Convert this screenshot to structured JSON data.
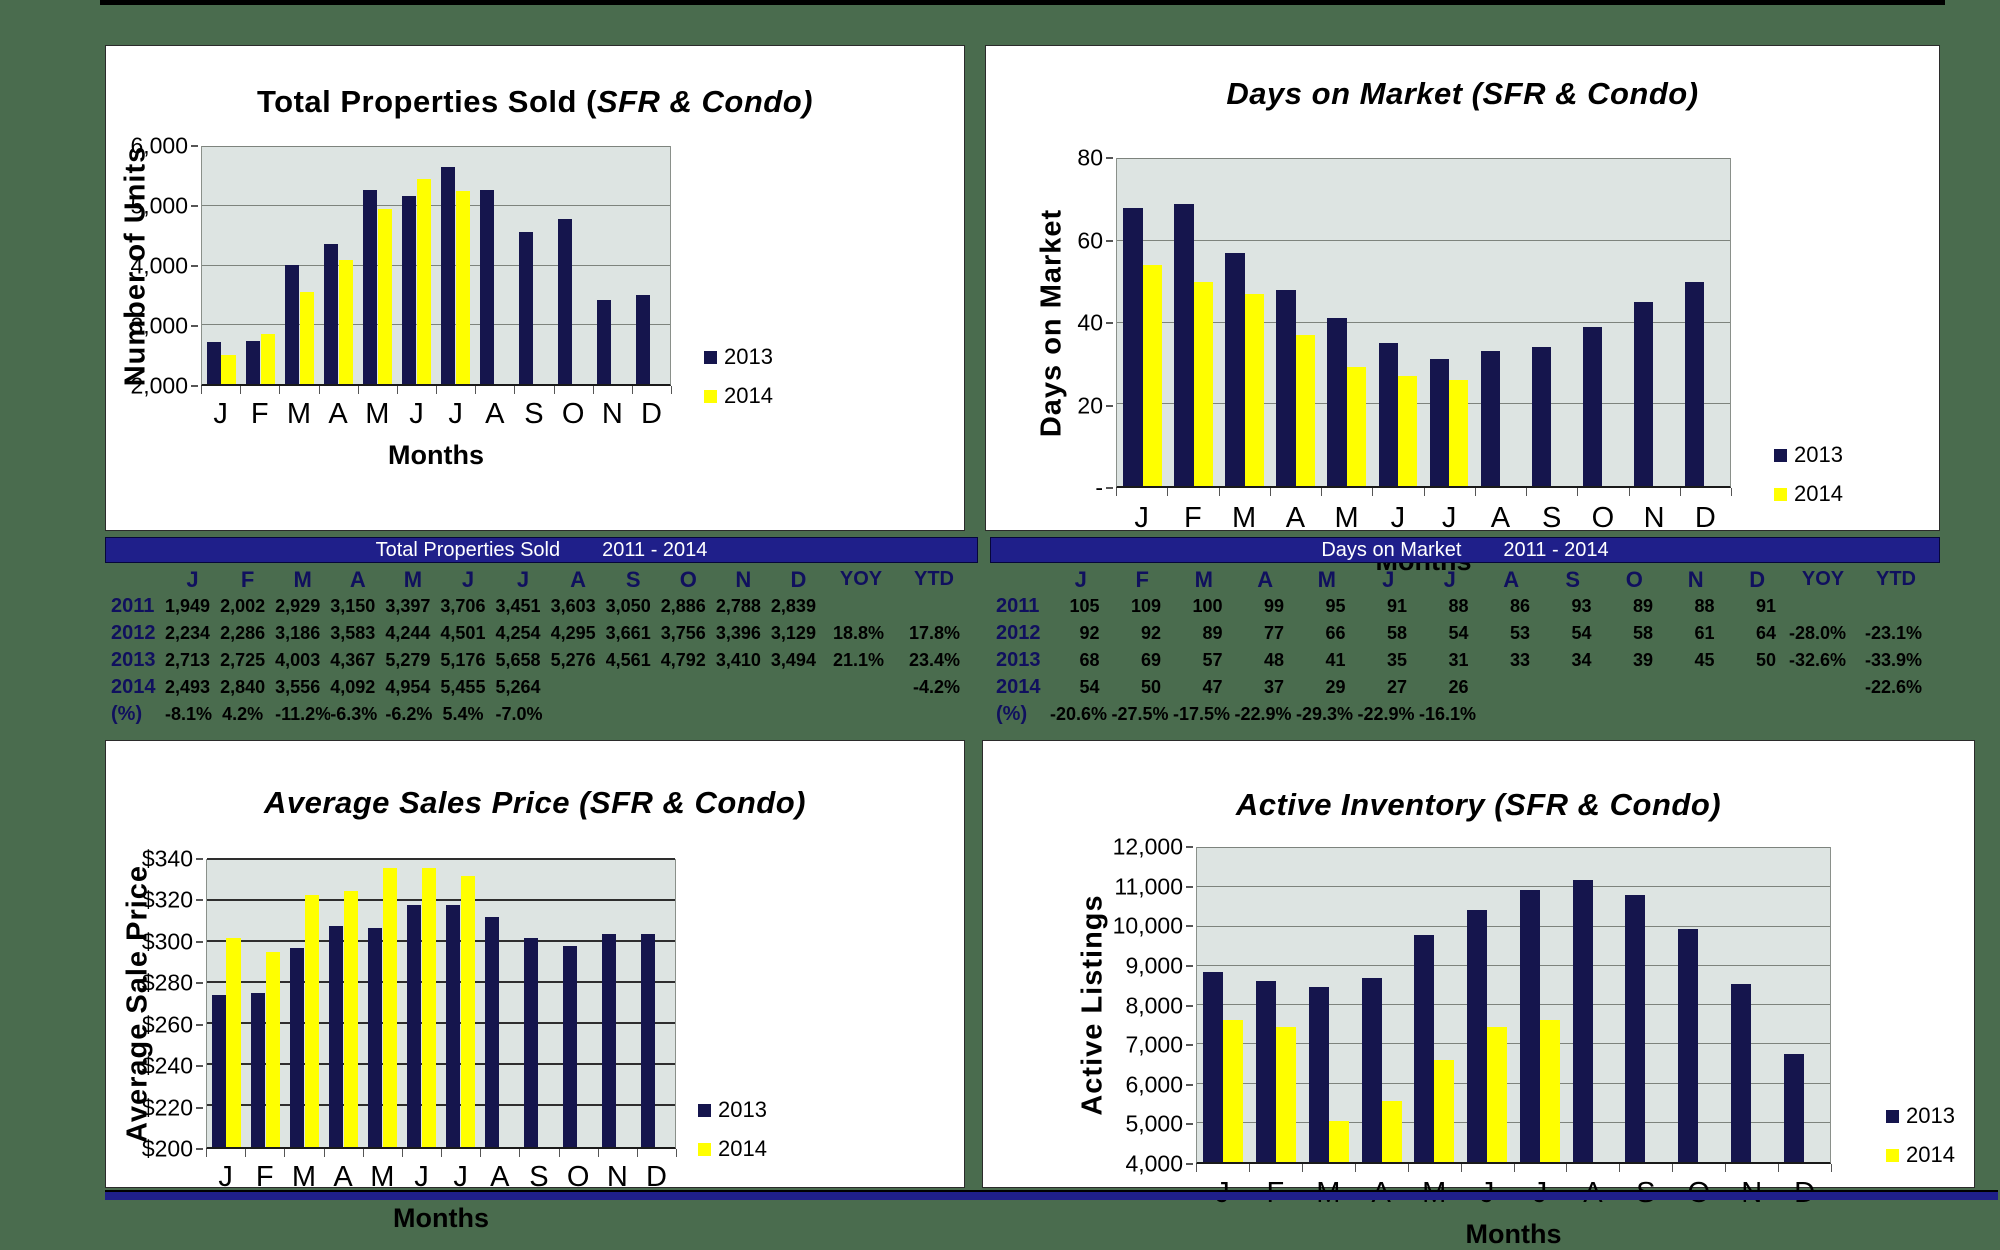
{
  "colors": {
    "page_bg": "#4a6c4e",
    "panel_bg": "#ffffff",
    "plot_bg": "#dde4e2",
    "gridline": "#7d837d",
    "bar_2013_navy": "#15154d",
    "bar_2014_yellow": "#ffff00",
    "table_header_bg": "#1f1f8a",
    "table_header_text": "#ffffff",
    "navy_text": "#10105e"
  },
  "chart_data": [
    {
      "type": "bar",
      "title": "Total Properties Sold (SFR & Condo)",
      "title_prefix": "Total Properties Sold (",
      "title_italic": "SFR & Condo)",
      "xlabel": "Months",
      "ylabel": "Number of Units",
      "categories": [
        "J",
        "F",
        "M",
        "A",
        "M",
        "J",
        "J",
        "A",
        "S",
        "O",
        "N",
        "D"
      ],
      "ylim": [
        2000,
        6000
      ],
      "yticks": [
        2000,
        3000,
        4000,
        5000,
        6000
      ],
      "ytick_labels": [
        "2,000",
        "3,000",
        "4,000",
        "5,000",
        "6,000"
      ],
      "grid": true,
      "legend_position": "right-bottom",
      "series": [
        {
          "name": "2013",
          "color": "#15154d",
          "values": [
            2713,
            2725,
            4003,
            4367,
            5279,
            5176,
            5658,
            5276,
            4561,
            4792,
            3410,
            3494
          ]
        },
        {
          "name": "2014",
          "color": "#ffff00",
          "values": [
            2493,
            2840,
            3556,
            4092,
            4954,
            5455,
            5264,
            null,
            null,
            null,
            null,
            null
          ]
        }
      ]
    },
    {
      "type": "bar",
      "title": "Days on Market (SFR & Condo)",
      "title_prefix": "",
      "title_italic": "Days on Market (SFR & Condo)",
      "xlabel": "Months",
      "ylabel": "Days on Market",
      "categories": [
        "J",
        "F",
        "M",
        "A",
        "M",
        "J",
        "J",
        "A",
        "S",
        "O",
        "N",
        "D"
      ],
      "ylim": [
        0,
        80
      ],
      "yticks": [
        0,
        20,
        40,
        60,
        80
      ],
      "ytick_labels": [
        "-",
        "20",
        "40",
        "60",
        "80"
      ],
      "grid": true,
      "legend_position": "right-bottom",
      "series": [
        {
          "name": "2013",
          "color": "#15154d",
          "values": [
            68,
            69,
            57,
            48,
            41,
            35,
            31,
            33,
            34,
            39,
            45,
            50
          ]
        },
        {
          "name": "2014",
          "color": "#ffff00",
          "values": [
            54,
            50,
            47,
            37,
            29,
            27,
            26,
            null,
            null,
            null,
            null,
            null
          ]
        }
      ]
    },
    {
      "type": "bar",
      "title": "Average Sales Price (SFR & Condo)",
      "title_prefix": "",
      "title_italic": "Average Sales Price (SFR & Condo)",
      "xlabel": "Months",
      "ylabel": "Average Sale Price",
      "categories": [
        "J",
        "F",
        "M",
        "A",
        "M",
        "J",
        "J",
        "A",
        "S",
        "O",
        "N",
        "D"
      ],
      "ylim": [
        200,
        340
      ],
      "yticks": [
        200,
        220,
        240,
        260,
        280,
        300,
        320,
        340
      ],
      "ytick_labels": [
        "$200",
        "$220",
        "$240",
        "$260",
        "$280",
        "$300",
        "$320",
        "$340"
      ],
      "grid": true,
      "grid_bold": true,
      "legend_position": "right-bottom",
      "series": [
        {
          "name": "2013",
          "color": "#15154d",
          "values": [
            274,
            275,
            297,
            308,
            307,
            318,
            318,
            312,
            302,
            298,
            304,
            304
          ]
        },
        {
          "name": "2014",
          "color": "#ffff00",
          "values": [
            302,
            295,
            323,
            325,
            336,
            336,
            332,
            null,
            null,
            null,
            null,
            null
          ]
        }
      ]
    },
    {
      "type": "bar",
      "title": "Active Inventory (SFR & Condo)",
      "title_prefix": "",
      "title_italic": "Active Inventory (SFR & Condo)",
      "xlabel": "Months",
      "ylabel": "Active Listings",
      "categories": [
        "J",
        "F",
        "M",
        "A",
        "M",
        "J",
        "J",
        "A",
        "S",
        "O",
        "N",
        "D"
      ],
      "ylim": [
        4000,
        12000
      ],
      "yticks": [
        4000,
        5000,
        6000,
        7000,
        8000,
        9000,
        10000,
        11000,
        12000
      ],
      "ytick_labels": [
        "4,000",
        "5,000",
        "6,000",
        "7,000",
        "8,000",
        "9,000",
        "10,000",
        "11,000",
        "12,000"
      ],
      "grid": true,
      "legend_position": "right-bottom",
      "series": [
        {
          "name": "2013",
          "color": "#15154d",
          "values": [
            8850,
            8600,
            8450,
            8700,
            9790,
            10430,
            10940,
            11190,
            10810,
            9930,
            8540,
            6760
          ]
        },
        {
          "name": "2014",
          "color": "#ffff00",
          "values": [
            7610,
            7440,
            5040,
            5560,
            6600,
            7450,
            7630,
            null,
            null,
            null,
            null,
            null
          ]
        }
      ]
    }
  ],
  "tables": [
    {
      "title": "Total Properties Sold",
      "range_label": "2011 - 2014",
      "columns": [
        "J",
        "F",
        "M",
        "A",
        "M",
        "J",
        "J",
        "A",
        "S",
        "O",
        "N",
        "D",
        "YOY",
        "YTD"
      ],
      "rows": [
        {
          "label": "2011",
          "values": [
            "1,949",
            "2,002",
            "2,929",
            "3,150",
            "3,397",
            "3,706",
            "3,451",
            "3,603",
            "3,050",
            "2,886",
            "2,788",
            "2,839",
            "",
            ""
          ]
        },
        {
          "label": "2012",
          "values": [
            "2,234",
            "2,286",
            "3,186",
            "3,583",
            "4,244",
            "4,501",
            "4,254",
            "4,295",
            "3,661",
            "3,756",
            "3,396",
            "3,129",
            "18.8%",
            "17.8%"
          ]
        },
        {
          "label": "2013",
          "values": [
            "2,713",
            "2,725",
            "4,003",
            "4,367",
            "5,279",
            "5,176",
            "5,658",
            "5,276",
            "4,561",
            "4,792",
            "3,410",
            "3,494",
            "21.1%",
            "23.4%"
          ]
        },
        {
          "label": "2014",
          "values": [
            "2,493",
            "2,840",
            "3,556",
            "4,092",
            "4,954",
            "5,455",
            "5,264",
            "",
            "",
            "",
            "",
            "",
            "",
            "-4.2%"
          ]
        },
        {
          "label": "(%)",
          "values": [
            "-8.1%",
            "4.2%",
            "-11.2%",
            "-6.3%",
            "-6.2%",
            "5.4%",
            "-7.0%",
            "",
            "",
            "",
            "",
            "",
            "",
            ""
          ]
        }
      ]
    },
    {
      "title": "Days on Market",
      "range_label": "2011 - 2014",
      "columns": [
        "J",
        "F",
        "M",
        "A",
        "M",
        "J",
        "J",
        "A",
        "S",
        "O",
        "N",
        "D",
        "YOY",
        "YTD"
      ],
      "rows": [
        {
          "label": "2011",
          "values": [
            "105",
            "109",
            "100",
            "99",
            "95",
            "91",
            "88",
            "86",
            "93",
            "89",
            "88",
            "91",
            "",
            ""
          ]
        },
        {
          "label": "2012",
          "values": [
            "92",
            "92",
            "89",
            "77",
            "66",
            "58",
            "54",
            "53",
            "54",
            "58",
            "61",
            "64",
            "-28.0%",
            "-23.1%"
          ]
        },
        {
          "label": "2013",
          "values": [
            "68",
            "69",
            "57",
            "48",
            "41",
            "35",
            "31",
            "33",
            "34",
            "39",
            "45",
            "50",
            "-32.6%",
            "-33.9%"
          ]
        },
        {
          "label": "2014",
          "values": [
            "54",
            "50",
            "47",
            "37",
            "29",
            "27",
            "26",
            "",
            "",
            "",
            "",
            "",
            "",
            "-22.6%"
          ]
        },
        {
          "label": "(%)",
          "values": [
            "-20.6%",
            "-27.5%",
            "-17.5%",
            "-22.9%",
            "-29.3%",
            "-22.9%",
            "-16.1%",
            "",
            "",
            "",
            "",
            "",
            "",
            ""
          ]
        }
      ]
    }
  ]
}
